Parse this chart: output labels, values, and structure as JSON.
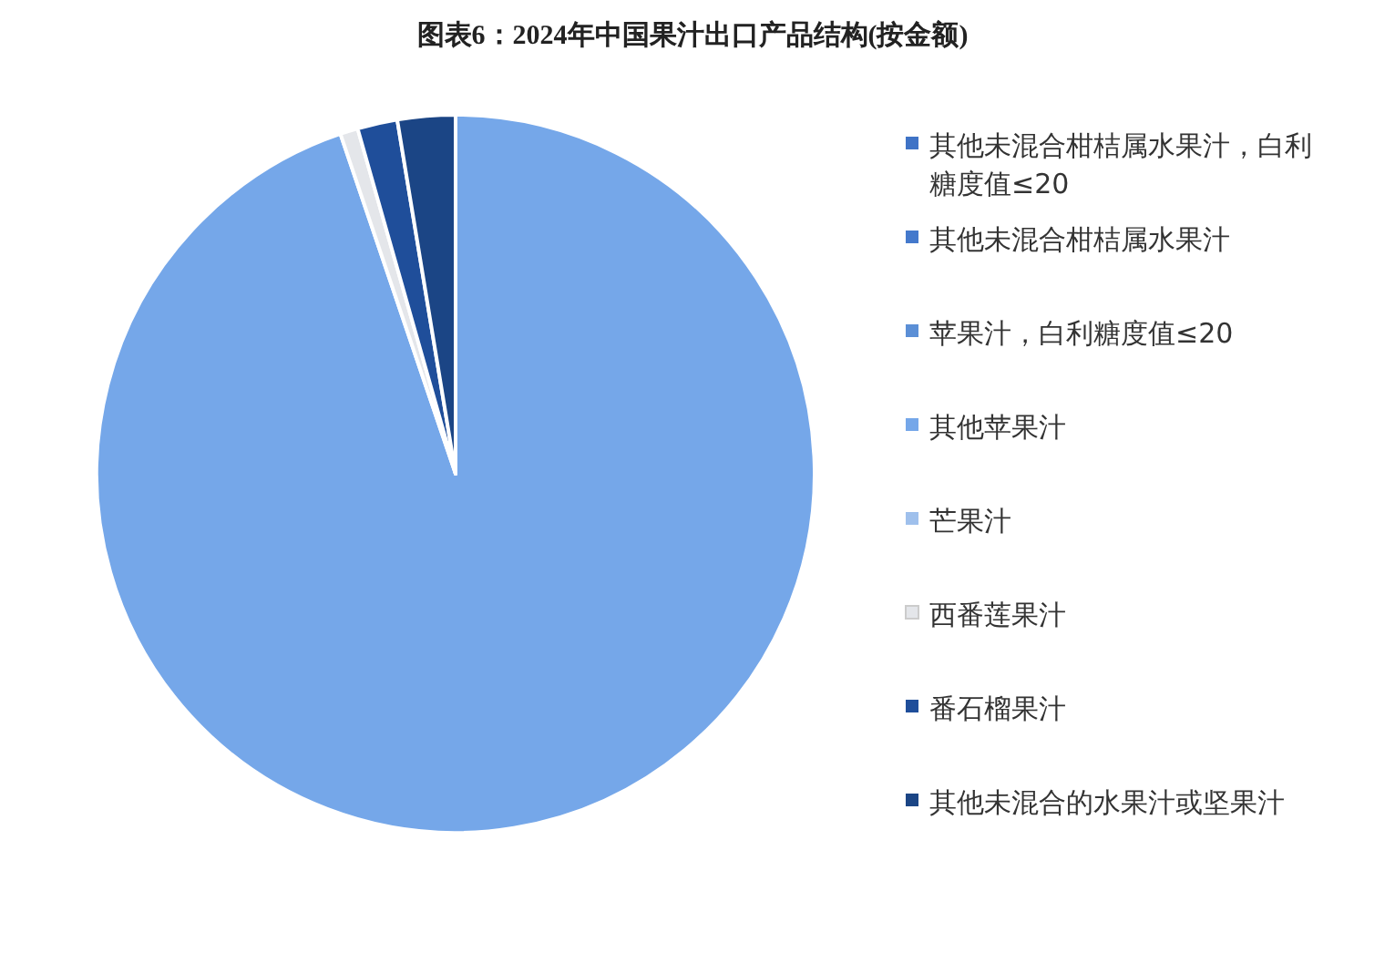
{
  "chart_data": {
    "type": "pie",
    "title": "图表6：2024年中国果汁出口产品结构(按金额)",
    "categories": [
      "其他未混合柑桔属水果汁，白利糖度值≤20",
      "其他未混合柑桔属水果汁",
      "苹果汁，白利糖度值≤20",
      "其他苹果汁",
      "芒果汁",
      "西番莲果汁",
      "番石榴果汁",
      "其他未混合的水果汁或坚果汁"
    ],
    "values": [
      null,
      null,
      null,
      94.8,
      null,
      0.8,
      1.8,
      2.6
    ],
    "colors": [
      "#3f73c6",
      "#4479cc",
      "#5b8fd6",
      "#75a7e9",
      "#9fc0ec",
      "#e4e6ea",
      "#1f4e9a",
      "#1b4585"
    ],
    "legend": "right"
  }
}
